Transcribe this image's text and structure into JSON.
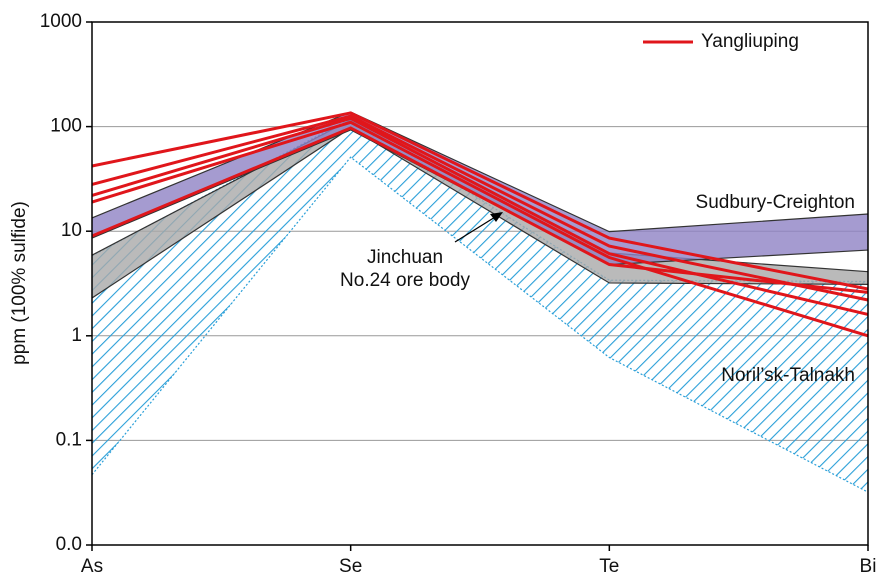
{
  "chart_data": {
    "type": "line",
    "ylabel": "ppm (100% sulfide)",
    "categories": [
      "As",
      "Se",
      "Te",
      "Bi"
    ],
    "log_y": true,
    "ylim": [
      0.01,
      1000
    ],
    "yticks": [
      1000,
      100,
      10,
      1,
      0.1,
      {
        "value": 0.01,
        "label": "0.0"
      }
    ],
    "grid": true,
    "legend": "upper right",
    "ranges": [
      {
        "label": [
          "Noril’sk-Talnakh"
        ],
        "color": "#2a9fd8",
        "hatch": true,
        "upper": [
          5.8,
          120,
          3.4,
          3.3
        ],
        "lower": [
          0.047,
          51,
          0.62,
          0.032
        ]
      },
      {
        "label": [
          "Jinchuan",
          "No.24 ore body"
        ],
        "color": "#a9a9a9",
        "hatch": false,
        "upper": [
          5.9,
          116,
          6.2,
          4.1
        ],
        "lower": [
          2.3,
          97,
          3.2,
          3.1
        ]
      },
      {
        "label": [
          "Sudbury-Creighton"
        ],
        "color": "#8f82c4",
        "hatch": false,
        "upper": [
          13.4,
          138,
          9.9,
          14.6
        ],
        "lower": [
          8.6,
          93,
          4.8,
          6.6
        ]
      }
    ],
    "series": [
      {
        "name": "Yangliuping",
        "color": "#e0161b",
        "lines": [
          [
            42,
            135,
            8.6,
            2.8
          ],
          [
            28,
            126,
            7.2,
            2.2
          ],
          [
            22,
            120,
            6.1,
            1.6
          ],
          [
            19,
            110,
            5.6,
            1.0
          ],
          [
            9,
            97,
            4.8,
            2.6
          ]
        ]
      }
    ]
  }
}
